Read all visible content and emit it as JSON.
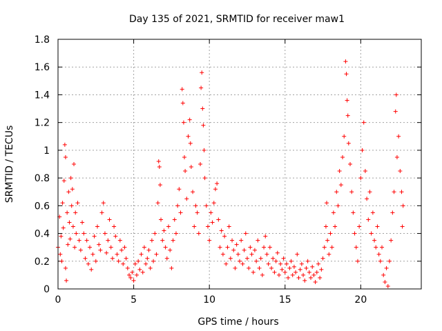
{
  "chart_data": {
    "type": "scatter",
    "title": "Day 135 of 2021, SRMTID for receiver maw1",
    "xlabel": "GPS time / hours",
    "ylabel": "SRMTID / TECUs",
    "xlim": [
      0,
      24
    ],
    "ylim": [
      0,
      1.8
    ],
    "x_ticks": [
      0,
      5,
      10,
      15,
      20
    ],
    "x_tick_labels": [
      "0",
      "5",
      "10",
      "15",
      "20"
    ],
    "y_ticks": [
      0,
      0.2,
      0.4,
      0.6,
      0.8,
      1.0,
      1.2,
      1.4,
      1.6,
      1.8
    ],
    "y_tick_labels": [
      "0",
      "0.2",
      "0.4",
      "0.6",
      "0.8",
      "1",
      "1.2",
      "1.4",
      "1.6",
      "1.8"
    ],
    "grid": true,
    "marker": "+",
    "color": "#ff0000",
    "series": [
      {
        "name": "SRMTID",
        "points": [
          [
            0.0,
            0.3
          ],
          [
            0.1,
            0.52
          ],
          [
            0.15,
            0.25
          ],
          [
            0.2,
            0.38
          ],
          [
            0.25,
            0.2
          ],
          [
            0.3,
            0.62
          ],
          [
            0.35,
            0.44
          ],
          [
            0.4,
            0.78
          ],
          [
            0.45,
            1.04
          ],
          [
            0.5,
            0.95
          ],
          [
            0.5,
            0.15
          ],
          [
            0.55,
            0.06
          ],
          [
            0.6,
            0.55
          ],
          [
            0.65,
            0.32
          ],
          [
            0.7,
            0.7
          ],
          [
            0.75,
            0.48
          ],
          [
            0.8,
            0.36
          ],
          [
            0.85,
            0.8
          ],
          [
            0.9,
            0.6
          ],
          [
            0.95,
            0.72
          ],
          [
            1.0,
            0.45
          ],
          [
            1.05,
            0.9
          ],
          [
            1.1,
            0.3
          ],
          [
            1.15,
            0.55
          ],
          [
            1.2,
            0.4
          ],
          [
            1.3,
            0.62
          ],
          [
            1.4,
            0.35
          ],
          [
            1.5,
            0.28
          ],
          [
            1.6,
            0.48
          ],
          [
            1.7,
            0.4
          ],
          [
            1.8,
            0.22
          ],
          [
            1.9,
            0.35
          ],
          [
            2.0,
            0.18
          ],
          [
            2.1,
            0.3
          ],
          [
            2.2,
            0.14
          ],
          [
            2.3,
            0.25
          ],
          [
            2.4,
            0.38
          ],
          [
            2.5,
            0.2
          ],
          [
            2.6,
            0.45
          ],
          [
            2.7,
            0.32
          ],
          [
            2.8,
            0.28
          ],
          [
            2.9,
            0.55
          ],
          [
            3.0,
            0.62
          ],
          [
            3.1,
            0.4
          ],
          [
            3.2,
            0.26
          ],
          [
            3.3,
            0.35
          ],
          [
            3.4,
            0.5
          ],
          [
            3.5,
            0.3
          ],
          [
            3.6,
            0.22
          ],
          [
            3.7,
            0.45
          ],
          [
            3.8,
            0.38
          ],
          [
            3.9,
            0.25
          ],
          [
            4.0,
            0.2
          ],
          [
            4.1,
            0.35
          ],
          [
            4.2,
            0.28
          ],
          [
            4.3,
            0.18
          ],
          [
            4.4,
            0.3
          ],
          [
            4.5,
            0.22
          ],
          [
            4.6,
            0.15
          ],
          [
            4.7,
            0.1
          ],
          [
            4.8,
            0.08
          ],
          [
            4.9,
            0.12
          ],
          [
            5.0,
            0.06
          ],
          [
            5.1,
            0.18
          ],
          [
            5.2,
            0.1
          ],
          [
            5.3,
            0.2
          ],
          [
            5.4,
            0.14
          ],
          [
            5.5,
            0.25
          ],
          [
            5.6,
            0.12
          ],
          [
            5.7,
            0.3
          ],
          [
            5.8,
            0.18
          ],
          [
            5.9,
            0.22
          ],
          [
            6.0,
            0.28
          ],
          [
            6.1,
            0.15
          ],
          [
            6.2,
            0.35
          ],
          [
            6.3,
            0.2
          ],
          [
            6.4,
            0.4
          ],
          [
            6.5,
            0.25
          ],
          [
            6.6,
            0.62
          ],
          [
            6.65,
            0.92
          ],
          [
            6.7,
            0.88
          ],
          [
            6.75,
            0.75
          ],
          [
            6.8,
            0.5
          ],
          [
            6.9,
            0.35
          ],
          [
            7.0,
            0.42
          ],
          [
            7.1,
            0.3
          ],
          [
            7.2,
            0.22
          ],
          [
            7.3,
            0.45
          ],
          [
            7.4,
            0.28
          ],
          [
            7.5,
            0.15
          ],
          [
            7.6,
            0.35
          ],
          [
            7.7,
            0.5
          ],
          [
            7.8,
            0.4
          ],
          [
            7.9,
            0.6
          ],
          [
            8.0,
            0.72
          ],
          [
            8.1,
            0.55
          ],
          [
            8.2,
            1.44
          ],
          [
            8.25,
            1.34
          ],
          [
            8.3,
            1.2
          ],
          [
            8.35,
            0.95
          ],
          [
            8.4,
            0.85
          ],
          [
            8.5,
            0.65
          ],
          [
            8.6,
            1.1
          ],
          [
            8.7,
            1.22
          ],
          [
            8.75,
            1.05
          ],
          [
            8.8,
            0.88
          ],
          [
            8.9,
            0.7
          ],
          [
            9.0,
            0.45
          ],
          [
            9.1,
            0.6
          ],
          [
            9.2,
            0.55
          ],
          [
            9.3,
            0.4
          ],
          [
            9.4,
            0.9
          ],
          [
            9.45,
            1.45
          ],
          [
            9.5,
            1.56
          ],
          [
            9.55,
            1.3
          ],
          [
            9.6,
            1.18
          ],
          [
            9.65,
            1.0
          ],
          [
            9.7,
            0.8
          ],
          [
            9.8,
            0.6
          ],
          [
            9.9,
            0.45
          ],
          [
            10.0,
            0.35
          ],
          [
            10.1,
            0.55
          ],
          [
            10.2,
            0.48
          ],
          [
            10.3,
            0.62
          ],
          [
            10.4,
            0.72
          ],
          [
            10.5,
            0.76
          ],
          [
            10.6,
            0.5
          ],
          [
            10.7,
            0.3
          ],
          [
            10.8,
            0.42
          ],
          [
            10.9,
            0.25
          ],
          [
            11.0,
            0.38
          ],
          [
            11.1,
            0.18
          ],
          [
            11.2,
            0.3
          ],
          [
            11.3,
            0.45
          ],
          [
            11.4,
            0.22
          ],
          [
            11.5,
            0.35
          ],
          [
            11.6,
            0.28
          ],
          [
            11.7,
            0.15
          ],
          [
            11.8,
            0.32
          ],
          [
            11.9,
            0.25
          ],
          [
            12.0,
            0.2
          ],
          [
            12.1,
            0.35
          ],
          [
            12.2,
            0.18
          ],
          [
            12.3,
            0.28
          ],
          [
            12.4,
            0.4
          ],
          [
            12.5,
            0.22
          ],
          [
            12.6,
            0.15
          ],
          [
            12.7,
            0.3
          ],
          [
            12.8,
            0.25
          ],
          [
            12.9,
            0.12
          ],
          [
            13.0,
            0.28
          ],
          [
            13.1,
            0.2
          ],
          [
            13.2,
            0.35
          ],
          [
            13.3,
            0.15
          ],
          [
            13.4,
            0.22
          ],
          [
            13.5,
            0.1
          ],
          [
            13.6,
            0.3
          ],
          [
            13.7,
            0.38
          ],
          [
            13.8,
            0.25
          ],
          [
            13.9,
            0.18
          ],
          [
            14.0,
            0.3
          ],
          [
            14.1,
            0.15
          ],
          [
            14.2,
            0.22
          ],
          [
            14.3,
            0.12
          ],
          [
            14.4,
            0.2
          ],
          [
            14.5,
            0.26
          ],
          [
            14.6,
            0.1
          ],
          [
            14.7,
            0.18
          ],
          [
            14.8,
            0.14
          ],
          [
            14.9,
            0.22
          ],
          [
            15.0,
            0.12
          ],
          [
            15.1,
            0.18
          ],
          [
            15.2,
            0.08
          ],
          [
            15.3,
            0.15
          ],
          [
            15.4,
            0.2
          ],
          [
            15.5,
            0.1
          ],
          [
            15.6,
            0.16
          ],
          [
            15.7,
            0.12
          ],
          [
            15.8,
            0.25
          ],
          [
            15.9,
            0.08
          ],
          [
            16.0,
            0.14
          ],
          [
            16.1,
            0.18
          ],
          [
            16.2,
            0.1
          ],
          [
            16.3,
            0.06
          ],
          [
            16.4,
            0.15
          ],
          [
            16.5,
            0.2
          ],
          [
            16.6,
            0.12
          ],
          [
            16.7,
            0.08
          ],
          [
            16.8,
            0.16
          ],
          [
            16.9,
            0.1
          ],
          [
            17.0,
            0.05
          ],
          [
            17.1,
            0.12
          ],
          [
            17.2,
            0.18
          ],
          [
            17.3,
            0.08
          ],
          [
            17.4,
            0.14
          ],
          [
            17.5,
            0.22
          ],
          [
            17.6,
            0.3
          ],
          [
            17.7,
            0.45
          ],
          [
            17.75,
            0.62
          ],
          [
            17.8,
            0.35
          ],
          [
            17.9,
            0.25
          ],
          [
            18.0,
            0.4
          ],
          [
            18.1,
            0.3
          ],
          [
            18.2,
            0.55
          ],
          [
            18.3,
            0.45
          ],
          [
            18.4,
            0.7
          ],
          [
            18.5,
            0.6
          ],
          [
            18.6,
            0.85
          ],
          [
            18.7,
            0.75
          ],
          [
            18.8,
            0.95
          ],
          [
            18.9,
            1.1
          ],
          [
            19.0,
            1.64
          ],
          [
            19.05,
            1.55
          ],
          [
            19.1,
            1.36
          ],
          [
            19.15,
            1.25
          ],
          [
            19.2,
            1.05
          ],
          [
            19.3,
            0.9
          ],
          [
            19.4,
            0.7
          ],
          [
            19.5,
            0.55
          ],
          [
            19.6,
            0.4
          ],
          [
            19.7,
            0.3
          ],
          [
            19.8,
            0.2
          ],
          [
            19.9,
            0.45
          ],
          [
            20.0,
            0.8
          ],
          [
            20.1,
            1.0
          ],
          [
            20.2,
            1.2
          ],
          [
            20.3,
            0.85
          ],
          [
            20.4,
            0.65
          ],
          [
            20.5,
            0.5
          ],
          [
            20.6,
            0.7
          ],
          [
            20.7,
            0.4
          ],
          [
            20.8,
            0.55
          ],
          [
            20.9,
            0.35
          ],
          [
            21.0,
            0.3
          ],
          [
            21.1,
            0.45
          ],
          [
            21.2,
            0.25
          ],
          [
            21.3,
            0.2
          ],
          [
            21.4,
            0.3
          ],
          [
            21.5,
            0.1
          ],
          [
            21.6,
            0.05
          ],
          [
            21.7,
            0.15
          ],
          [
            21.8,
            0.02
          ],
          [
            21.9,
            0.2
          ],
          [
            22.0,
            0.35
          ],
          [
            22.1,
            0.55
          ],
          [
            22.2,
            0.7
          ],
          [
            22.3,
            1.28
          ],
          [
            22.35,
            1.4
          ],
          [
            22.4,
            0.95
          ],
          [
            22.5,
            1.1
          ],
          [
            22.6,
            0.85
          ],
          [
            22.7,
            0.7
          ],
          [
            22.75,
            0.45
          ],
          [
            22.8,
            0.6
          ]
        ]
      }
    ]
  }
}
